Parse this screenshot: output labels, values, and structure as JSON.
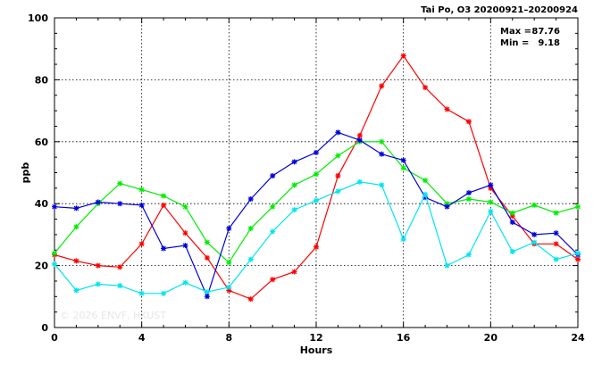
{
  "chart_data": {
    "type": "line",
    "title": "Tai Po, O3 20200921–20200924",
    "xlabel": "Hours",
    "ylabel": "ppb",
    "xlim": [
      0,
      24
    ],
    "ylim": [
      0,
      100
    ],
    "xticks": [
      0,
      4,
      8,
      12,
      16,
      20,
      24
    ],
    "yticks": [
      0,
      20,
      40,
      60,
      80,
      100
    ],
    "x_tick_labels": [
      "0",
      "4",
      "8",
      "12",
      "16",
      "20",
      "24"
    ],
    "y_tick_labels": [
      "0",
      "20",
      "40",
      "60",
      "80",
      "100"
    ],
    "grid": true,
    "stats": {
      "max_label": "Max =",
      "max_value": "87.76",
      "min_label": "Min =",
      "min_value": "9.18"
    },
    "watermark": "© 2026  ENVF, HKUST",
    "x": [
      0,
      1,
      2,
      3,
      4,
      5,
      6,
      7,
      8,
      9,
      10,
      11,
      12,
      13,
      14,
      15,
      16,
      17,
      18,
      19,
      20,
      21,
      22,
      23,
      24
    ],
    "series": [
      {
        "color": "#ff0000",
        "values": [
          23.5,
          21.5,
          20,
          19.5,
          27,
          39.5,
          30.5,
          22.5,
          12,
          9.18,
          15.5,
          18,
          26,
          49,
          62,
          78,
          87.76,
          77.5,
          70.5,
          66.5,
          45,
          36,
          27,
          27,
          22
        ]
      },
      {
        "color": "#00ee00",
        "values": [
          24,
          32.5,
          40,
          46.5,
          44.5,
          42.5,
          39,
          27.5,
          21,
          32,
          39,
          46,
          49.5,
          55.5,
          60,
          60,
          51.5,
          47.5,
          40,
          41.5,
          40.5,
          37,
          39.5,
          37,
          39
        ]
      },
      {
        "color": "#0000dd",
        "values": [
          39,
          38.5,
          40.5,
          40,
          39.5,
          25.5,
          26.5,
          10,
          32,
          41.5,
          49,
          53.5,
          56.5,
          63,
          60.5,
          56,
          54,
          42,
          39,
          43.5,
          46,
          34,
          30,
          30.5,
          23.5
        ]
      },
      {
        "color": "#00e5ee",
        "values": [
          20.5,
          12,
          14,
          13.5,
          11,
          11,
          14.5,
          11.5,
          13,
          22,
          31,
          38,
          41,
          44,
          47,
          46,
          28.5,
          43,
          20,
          23.5,
          37.5,
          24.5,
          27.5,
          22,
          24
        ]
      }
    ]
  }
}
